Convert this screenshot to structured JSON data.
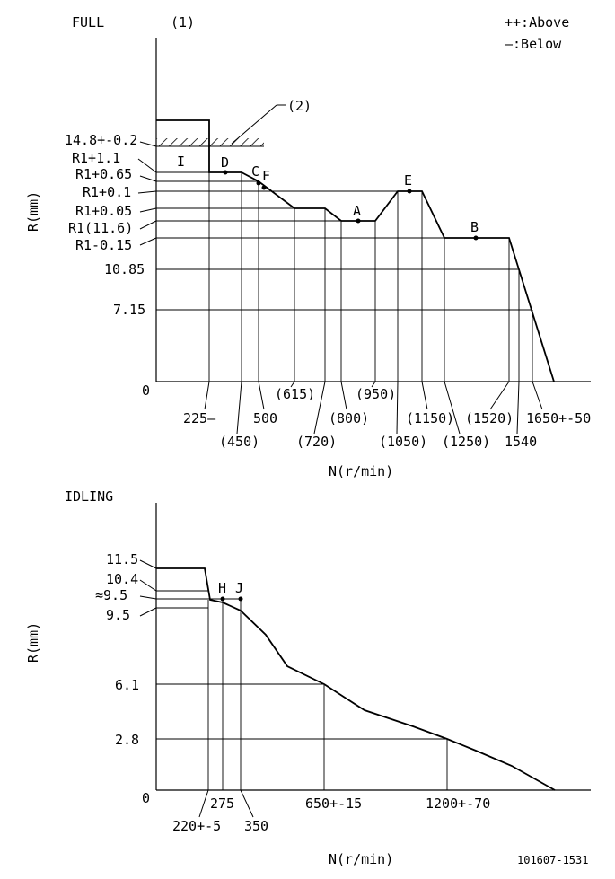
{
  "legend": {
    "above": "++:Above",
    "below": "—:Below"
  },
  "footer": {
    "code": "101607-1531"
  },
  "full": {
    "title": "FULL",
    "marker1": "(1)",
    "marker2": "(2)",
    "ylabel": "R(mm)",
    "xlabel": "N(r/min)",
    "yticks": [
      "14.8+-0.2",
      "R1+1.1",
      "R1+0.65",
      "R1+0.1",
      "R1+0.05",
      "R1(11.6)",
      "R1-0.15",
      "10.85",
      "7.15",
      "0"
    ],
    "xticks": [
      "225—",
      "(450)",
      "500",
      "(615)",
      "(720)",
      "(800)",
      "(950)",
      "(1050)",
      "(1150)",
      "(1250)",
      "(1520)",
      "1540",
      "1650+-50"
    ],
    "points": [
      "I",
      "D",
      "C",
      "F",
      "E",
      "A",
      "B"
    ]
  },
  "idling": {
    "title": "IDLING",
    "ylabel": "R(mm)",
    "xlabel": "N(r/min)",
    "yticks": [
      "11.5",
      "10.4",
      "≈9.5",
      "9.5",
      "6.1",
      "2.8",
      "0"
    ],
    "xticks": [
      "220+-5",
      "275",
      "350",
      "650+-15",
      "1200+-70"
    ],
    "points": [
      "H",
      "J"
    ]
  }
}
